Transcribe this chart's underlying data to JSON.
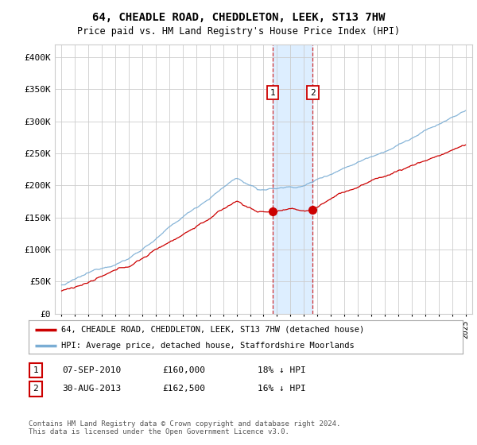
{
  "title": "64, CHEADLE ROAD, CHEDDLETON, LEEK, ST13 7HW",
  "subtitle": "Price paid vs. HM Land Registry's House Price Index (HPI)",
  "ylim": [
    0,
    420000
  ],
  "yticks": [
    0,
    50000,
    100000,
    150000,
    200000,
    250000,
    300000,
    350000,
    400000
  ],
  "ytick_labels": [
    "£0",
    "£50K",
    "£100K",
    "£150K",
    "£200K",
    "£250K",
    "£300K",
    "£350K",
    "£400K"
  ],
  "sale1_x": 2010.68,
  "sale1_price": 160000,
  "sale2_x": 2013.66,
  "sale2_price": 162500,
  "hpi_color": "#7aadd4",
  "sale_color": "#cc0000",
  "highlight_color": "#ddeeff",
  "grid_color": "#cccccc",
  "background_color": "#ffffff",
  "legend_sale_label": "64, CHEADLE ROAD, CHEDDLETON, LEEK, ST13 7HW (detached house)",
  "legend_hpi_label": "HPI: Average price, detached house, Staffordshire Moorlands",
  "footer": "Contains HM Land Registry data © Crown copyright and database right 2024.\nThis data is licensed under the Open Government Licence v3.0.",
  "table_rows": [
    [
      "1",
      "07-SEP-2010",
      "£160,000",
      "18% ↓ HPI"
    ],
    [
      "2",
      "30-AUG-2013",
      "£162,500",
      "16% ↓ HPI"
    ]
  ],
  "xmin": 1994.5,
  "xmax": 2025.5
}
